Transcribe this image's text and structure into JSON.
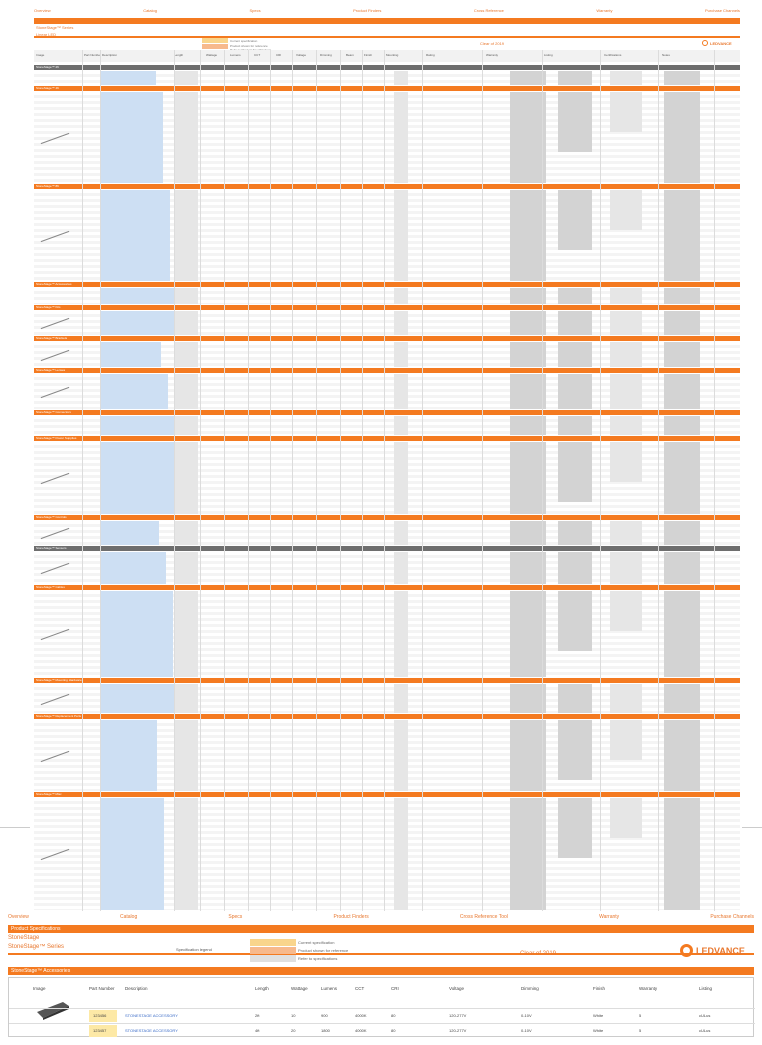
{
  "nav": [
    "Overview",
    "Catalog",
    "Specs",
    "Product Finders",
    "Cross Reference",
    "Warranty",
    "Purchase Channels"
  ],
  "header": {
    "band_label": "Product Specifications",
    "title": "StoneStage™ Series",
    "subtitle": "Linear LED",
    "legend": [
      "Current specification",
      "Product shown for reference",
      "Refer to Product Specifications"
    ],
    "mid": "Clear of 2019",
    "logo": "LEDVANCE"
  },
  "columns": [
    "Image",
    "Part Number",
    "Description",
    "Length",
    "Wattage",
    "Lumens",
    "CCT",
    "CRI",
    "Voltage",
    "Dimming",
    "Beam",
    "Finish",
    "Mounting",
    "Rating",
    "Warranty",
    "Listing",
    "Certifications",
    "Notes"
  ],
  "sections": [
    {
      "label": "StoneStage™ 2ft"
    },
    {
      "label": "StoneStage™ 4ft"
    },
    {
      "label": "StoneStage™ 8ft"
    },
    {
      "label": "StoneStage™ Accessories"
    },
    {
      "label": "StoneStage™ Kits"
    },
    {
      "label": "StoneStage™ Brackets"
    },
    {
      "label": "StoneStage™ Lenses"
    },
    {
      "label": "StoneStage™ Connectors"
    },
    {
      "label": "StoneStage™ Power Supplies"
    },
    {
      "label": "StoneStage™ Controls"
    },
    {
      "label": "StoneStage™ Sensors"
    },
    {
      "label": "StoneStage™ Cables"
    },
    {
      "label": "StoneStage™ Mounting Hardware"
    },
    {
      "label": "StoneStage™ Replacement Parts"
    },
    {
      "label": "StoneStage™ Misc"
    }
  ],
  "bottom": {
    "nav": [
      "Overview",
      "Catalog",
      "Specs",
      "Product Finders",
      "Cross Reference Tool",
      "Warranty",
      "Purchase Channels"
    ],
    "band_label": "Product Specifications",
    "title": "StoneStage",
    "subtitle": "StoneStage™ Series",
    "legend_label": "Specification legend",
    "legend": [
      "Current specification",
      "Product shown for reference",
      "Refer to specifications"
    ],
    "mid": "Clear of 2019",
    "logo": "LEDVANCE",
    "section_label": "StoneStage™ Accessories",
    "table_headers": [
      "Image",
      "Part Number",
      "Description",
      "Length",
      "Wattage",
      "Lumens",
      "CCT",
      "CRI",
      "Voltage",
      "Dimming",
      "Finish",
      "Warranty",
      "Listing"
    ],
    "rows": [
      {
        "part": "123456",
        "desc": "STONESTAGE ACCESSORY",
        "length": "2ft",
        "watt": "10",
        "lumens": "900",
        "cct": "4000K",
        "cri": "80",
        "volt": "120-277V",
        "dim": "0-10V",
        "finish": "White",
        "warranty": "5",
        "listing": "cULus"
      },
      {
        "part": "123457",
        "desc": "STONESTAGE ACCESSORY",
        "length": "4ft",
        "watt": "20",
        "lumens": "1800",
        "cct": "4000K",
        "cri": "80",
        "volt": "120-277V",
        "dim": "0-10V",
        "finish": "White",
        "warranty": "5",
        "listing": "cULus"
      }
    ]
  },
  "colors": {
    "accent": "#f47a20",
    "grey_band": "#6e6e6e",
    "blue_col": "#cddff3"
  }
}
